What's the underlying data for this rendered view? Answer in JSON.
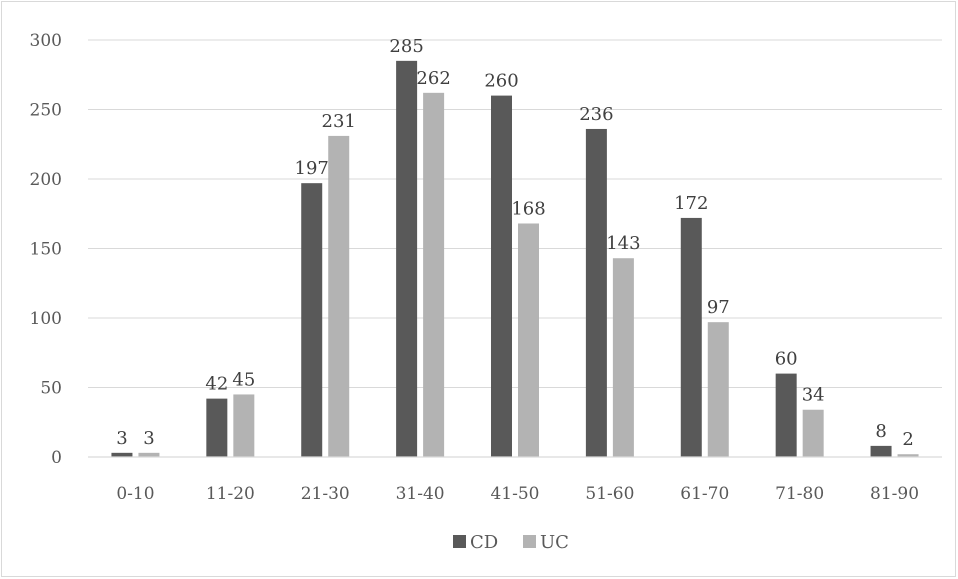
{
  "chart_data": {
    "type": "bar",
    "categories": [
      "0-10",
      "11-20",
      "21-30",
      "31-40",
      "41-50",
      "51-60",
      "61-70",
      "71-80",
      "81-90"
    ],
    "series": [
      {
        "name": "CD",
        "values": [
          3,
          42,
          197,
          285,
          260,
          236,
          172,
          60,
          8
        ],
        "color": "#595959"
      },
      {
        "name": "UC",
        "values": [
          3,
          45,
          231,
          262,
          168,
          143,
          97,
          34,
          2
        ],
        "color": "#b3b3b3"
      }
    ],
    "title": "",
    "xlabel": "",
    "ylabel": "",
    "ylim": [
      0,
      300
    ],
    "yticks": [
      "0",
      "50",
      "100",
      "150",
      "200",
      "250",
      "300"
    ],
    "grid": true,
    "legend_position": "bottom",
    "gridline_color": "#d9d9d9",
    "axis_color": "#d9d9d9"
  }
}
